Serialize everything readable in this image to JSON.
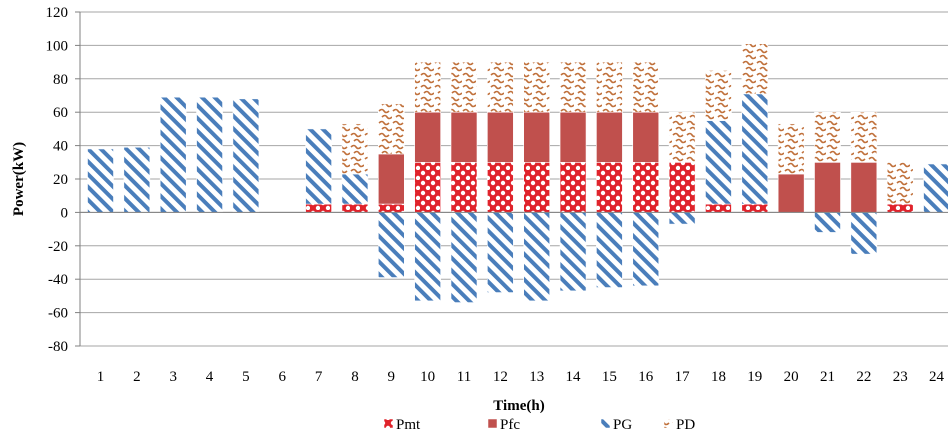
{
  "chart_data": {
    "type": "bar",
    "stacked": true,
    "xlabel": "Time(h)",
    "ylabel": "Power(kW)",
    "ylim": [
      -80,
      120
    ],
    "ytick_step": 20,
    "grid": "horizontal",
    "legend_position": "bottom",
    "categories": [
      "1",
      "2",
      "3",
      "4",
      "5",
      "6",
      "7",
      "8",
      "9",
      "10",
      "11",
      "12",
      "13",
      "14",
      "15",
      "16",
      "17",
      "18",
      "19",
      "20",
      "21",
      "22",
      "23",
      "24"
    ],
    "series": [
      {
        "name": "Pmt",
        "pattern": "dots",
        "color": "#e0232b",
        "values": [
          0,
          0,
          0,
          0,
          0,
          0,
          5,
          5,
          5,
          30,
          30,
          30,
          30,
          30,
          30,
          30,
          30,
          5,
          5,
          0,
          0,
          0,
          5,
          0
        ]
      },
      {
        "name": "Pfc",
        "pattern": "solid",
        "color": "#c0504d",
        "values": [
          0,
          0,
          0,
          0,
          0,
          0,
          0,
          0,
          30,
          30,
          30,
          30,
          30,
          30,
          30,
          30,
          0,
          0,
          0,
          23,
          30,
          30,
          0,
          0
        ]
      },
      {
        "name": "PG",
        "pattern": "hatch",
        "color": "#4a7ebb",
        "values": [
          38,
          39,
          69,
          69,
          68,
          0,
          45,
          18,
          -39,
          -53,
          -54,
          -48,
          -53,
          -47,
          -45,
          -44,
          -7,
          50,
          66,
          0,
          -12,
          -25,
          0,
          29
        ]
      },
      {
        "name": "PD",
        "pattern": "wave",
        "color": "#c0703a",
        "values": [
          0,
          0,
          0,
          0,
          0,
          0,
          0,
          30,
          30,
          30,
          30,
          30,
          30,
          30,
          30,
          30,
          30,
          30,
          30,
          30,
          30,
          30,
          25,
          0
        ]
      }
    ]
  }
}
